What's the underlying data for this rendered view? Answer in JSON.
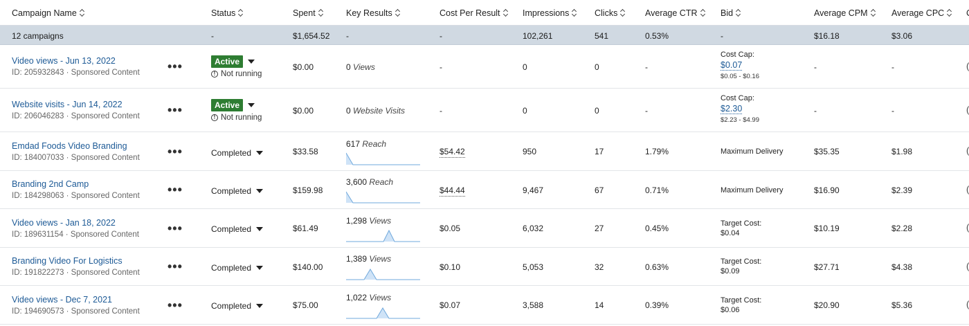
{
  "header": {
    "columns": [
      "Campaign Name",
      "Status",
      "Spent",
      "Key Results",
      "Cost Per Result",
      "Impressions",
      "Clicks",
      "Average CTR",
      "Bid",
      "Average CPM",
      "Average CPC",
      "C"
    ]
  },
  "summary": {
    "name": "12 campaigns",
    "status": "-",
    "spent": "$1,654.52",
    "key_results": "-",
    "cpr": "-",
    "impressions": "102,261",
    "clicks": "541",
    "ctr": "0.53%",
    "bid": "-",
    "cpm": "$16.18",
    "cpc": "$3.06"
  },
  "rows": [
    {
      "name": "Video views - Jun 13, 2022",
      "id": "ID: 205932843 · Sponsored Content",
      "more": "•••",
      "status": "Active",
      "status_sub": "Not running",
      "spent": "$0.00",
      "kr_num": "0",
      "kr_unit": "Views",
      "cpr": "-",
      "impressions": "0",
      "clicks": "0",
      "ctr": "-",
      "bid_label": "Cost Cap:",
      "bid_value": "$0.07",
      "bid_range": "$0.05 - $0.16",
      "cpm": "-",
      "cpc": "-"
    },
    {
      "name": "Website visits - Jun 14, 2022",
      "id": "ID: 206046283 · Sponsored Content",
      "more": "•••",
      "status": "Active",
      "status_sub": "Not running",
      "spent": "$0.00",
      "kr_num": "0",
      "kr_unit": "Website Visits",
      "cpr": "-",
      "impressions": "0",
      "clicks": "0",
      "ctr": "-",
      "bid_label": "Cost Cap:",
      "bid_value": "$2.30",
      "bid_range": "$2.23 - $4.99",
      "cpm": "-",
      "cpc": "-"
    },
    {
      "name": "Emdad Foods Video Branding",
      "id": "ID: 184007033 · Sponsored Content",
      "more": "•••",
      "status": "Completed",
      "spent": "$33.58",
      "kr_num": "617",
      "kr_unit": "Reach",
      "cpr": "$54.42",
      "impressions": "950",
      "clicks": "17",
      "ctr": "1.79%",
      "bid": "Maximum Delivery",
      "cpm": "$35.35",
      "cpc": "$1.98"
    },
    {
      "name": "Branding 2nd Camp",
      "id": "ID: 184298063 · Sponsored Content",
      "more": "•••",
      "status": "Completed",
      "spent": "$159.98",
      "kr_num": "3,600",
      "kr_unit": "Reach",
      "cpr": "$44.44",
      "impressions": "9,467",
      "clicks": "67",
      "ctr": "0.71%",
      "bid": "Maximum Delivery",
      "cpm": "$16.90",
      "cpc": "$2.39"
    },
    {
      "name": "Video views - Jan 18, 2022",
      "id": "ID: 189631154 · Sponsored Content",
      "more": "•••",
      "status": "Completed",
      "spent": "$61.49",
      "kr_num": "1,298",
      "kr_unit": "Views",
      "cpr": "$0.05",
      "impressions": "6,032",
      "clicks": "27",
      "ctr": "0.45%",
      "bid_label": "Target Cost:",
      "bid_value": "$0.04",
      "cpm": "$10.19",
      "cpc": "$2.28"
    },
    {
      "name": "Branding Video For Logistics",
      "id": "ID: 191822273 · Sponsored Content",
      "more": "•••",
      "status": "Completed",
      "spent": "$140.00",
      "kr_num": "1,389",
      "kr_unit": "Views",
      "cpr": "$0.10",
      "impressions": "5,053",
      "clicks": "32",
      "ctr": "0.63%",
      "bid_label": "Target Cost:",
      "bid_value": "$0.09",
      "cpm": "$27.71",
      "cpc": "$4.38"
    },
    {
      "name": "Video views - Dec 7, 2021",
      "id": "ID: 194690573 · Sponsored Content",
      "more": "•••",
      "status": "Completed",
      "spent": "$75.00",
      "kr_num": "1,022",
      "kr_unit": "Views",
      "cpr": "$0.07",
      "impressions": "3,588",
      "clicks": "14",
      "ctr": "0.39%",
      "bid_label": "Target Cost:",
      "bid_value": "$0.06",
      "cpm": "$20.90",
      "cpc": "$5.36"
    }
  ],
  "colors": {
    "link": "#1d5a96",
    "active_badge": "#2e7d32",
    "summary_bg": "#d0d9e2",
    "spark_fill": "#cfe3f7",
    "spark_line": "#6fa8dc"
  }
}
